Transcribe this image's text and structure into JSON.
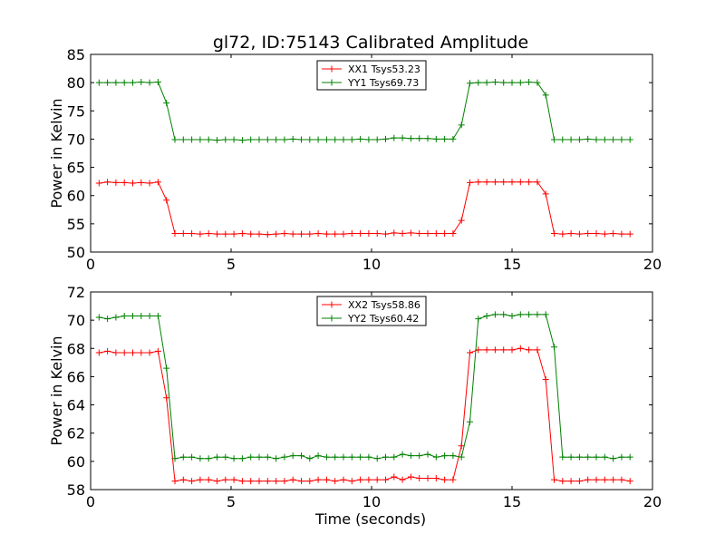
{
  "chart_data": [
    {
      "type": "line",
      "title": "gl72, ID:75143 Calibrated Amplitude",
      "xlabel": "",
      "ylabel": "Power in Kelvin",
      "xlim": [
        0,
        20
      ],
      "ylim": [
        50,
        85
      ],
      "xticks": [
        "0",
        "5",
        "10",
        "15",
        "20"
      ],
      "yticks": [
        "50",
        "55",
        "60",
        "65",
        "70",
        "75",
        "80",
        "85"
      ],
      "legend_position": "top-center",
      "x": [
        0.3,
        0.6,
        0.9,
        1.2,
        1.5,
        1.8,
        2.1,
        2.4,
        2.7,
        3.0,
        3.3,
        3.6,
        3.9,
        4.2,
        4.5,
        4.8,
        5.1,
        5.4,
        5.7,
        6.0,
        6.3,
        6.6,
        6.9,
        7.2,
        7.5,
        7.8,
        8.1,
        8.4,
        8.7,
        9.0,
        9.3,
        9.6,
        9.9,
        10.2,
        10.5,
        10.8,
        11.1,
        11.4,
        11.7,
        12.0,
        12.3,
        12.6,
        12.9,
        13.2,
        13.5,
        13.8,
        14.1,
        14.4,
        14.7,
        15.0,
        15.3,
        15.6,
        15.9,
        16.2,
        16.5,
        16.8,
        17.1,
        17.4,
        17.7,
        18.0,
        18.3,
        18.6,
        18.9,
        19.2
      ],
      "series": [
        {
          "name": "XX1 Tsys53.23",
          "color": "#ff0000",
          "values": [
            62.2,
            62.4,
            62.3,
            62.3,
            62.2,
            62.3,
            62.2,
            62.4,
            59.2,
            53.3,
            53.3,
            53.3,
            53.2,
            53.3,
            53.2,
            53.2,
            53.2,
            53.3,
            53.2,
            53.2,
            53.1,
            53.2,
            53.3,
            53.2,
            53.2,
            53.2,
            53.3,
            53.2,
            53.2,
            53.2,
            53.3,
            53.3,
            53.3,
            53.3,
            53.2,
            53.4,
            53.3,
            53.4,
            53.3,
            53.3,
            53.3,
            53.3,
            53.3,
            55.6,
            62.3,
            62.4,
            62.4,
            62.4,
            62.4,
            62.4,
            62.4,
            62.4,
            62.4,
            60.3,
            53.3,
            53.2,
            53.3,
            53.2,
            53.3,
            53.3,
            53.2,
            53.3,
            53.2,
            53.2
          ]
        },
        {
          "name": "YY1 Tsys69.73",
          "color": "#008000",
          "values": [
            80.0,
            80.0,
            80.0,
            80.0,
            80.0,
            80.1,
            80.0,
            80.1,
            76.4,
            69.9,
            69.9,
            69.9,
            69.9,
            69.9,
            69.8,
            69.9,
            69.9,
            69.8,
            69.9,
            69.9,
            69.9,
            69.9,
            69.9,
            70.0,
            69.9,
            69.9,
            69.9,
            69.9,
            69.9,
            69.9,
            69.9,
            70.0,
            69.9,
            69.9,
            70.0,
            70.2,
            70.2,
            70.1,
            70.1,
            70.1,
            70.0,
            70.0,
            70.0,
            72.5,
            79.9,
            80.0,
            80.0,
            80.1,
            80.0,
            80.0,
            80.0,
            80.1,
            80.0,
            77.8,
            69.9,
            69.9,
            69.9,
            69.9,
            70.0,
            69.9,
            69.9,
            69.9,
            69.9,
            69.9
          ]
        }
      ]
    },
    {
      "type": "line",
      "title": "",
      "xlabel": "Time (seconds)",
      "ylabel": "Power in Kelvin",
      "xlim": [
        0,
        20
      ],
      "ylim": [
        58,
        72
      ],
      "xticks": [
        "0",
        "5",
        "10",
        "15",
        "20"
      ],
      "yticks": [
        "58",
        "60",
        "62",
        "64",
        "66",
        "68",
        "70",
        "72"
      ],
      "legend_position": "top-center",
      "x": [
        0.3,
        0.6,
        0.9,
        1.2,
        1.5,
        1.8,
        2.1,
        2.4,
        2.7,
        3.0,
        3.3,
        3.6,
        3.9,
        4.2,
        4.5,
        4.8,
        5.1,
        5.4,
        5.7,
        6.0,
        6.3,
        6.6,
        6.9,
        7.2,
        7.5,
        7.8,
        8.1,
        8.4,
        8.7,
        9.0,
        9.3,
        9.6,
        9.9,
        10.2,
        10.5,
        10.8,
        11.1,
        11.4,
        11.7,
        12.0,
        12.3,
        12.6,
        12.9,
        13.2,
        13.5,
        13.8,
        14.1,
        14.4,
        14.7,
        15.0,
        15.3,
        15.6,
        15.9,
        16.2,
        16.5,
        16.8,
        17.1,
        17.4,
        17.7,
        18.0,
        18.3,
        18.6,
        18.9,
        19.2
      ],
      "series": [
        {
          "name": "XX2 Tsys58.86",
          "color": "#ff0000",
          "values": [
            67.7,
            67.8,
            67.7,
            67.7,
            67.7,
            67.7,
            67.7,
            67.8,
            64.5,
            58.6,
            58.7,
            58.6,
            58.7,
            58.7,
            58.6,
            58.7,
            58.7,
            58.6,
            58.6,
            58.6,
            58.6,
            58.6,
            58.6,
            58.7,
            58.6,
            58.6,
            58.7,
            58.7,
            58.6,
            58.7,
            58.6,
            58.7,
            58.7,
            58.7,
            58.7,
            58.9,
            58.7,
            58.9,
            58.8,
            58.8,
            58.8,
            58.7,
            58.7,
            61.1,
            67.7,
            67.9,
            67.9,
            67.9,
            67.9,
            67.9,
            68.0,
            67.9,
            67.9,
            65.8,
            58.7,
            58.6,
            58.6,
            58.6,
            58.7,
            58.7,
            58.7,
            58.7,
            58.7,
            58.6
          ]
        },
        {
          "name": "YY2 Tsys60.42",
          "color": "#008000",
          "values": [
            70.2,
            70.1,
            70.2,
            70.3,
            70.3,
            70.3,
            70.3,
            70.3,
            66.6,
            60.2,
            60.3,
            60.3,
            60.2,
            60.2,
            60.3,
            60.3,
            60.2,
            60.2,
            60.3,
            60.3,
            60.3,
            60.2,
            60.3,
            60.4,
            60.4,
            60.2,
            60.4,
            60.3,
            60.3,
            60.3,
            60.3,
            60.3,
            60.3,
            60.2,
            60.3,
            60.3,
            60.5,
            60.4,
            60.4,
            60.5,
            60.3,
            60.4,
            60.4,
            60.3,
            62.8,
            70.1,
            70.3,
            70.4,
            70.4,
            70.3,
            70.4,
            70.4,
            70.4,
            70.4,
            68.1,
            60.3,
            60.3,
            60.3,
            60.3,
            60.3,
            60.3,
            60.2,
            60.3,
            60.3
          ]
        }
      ]
    }
  ]
}
